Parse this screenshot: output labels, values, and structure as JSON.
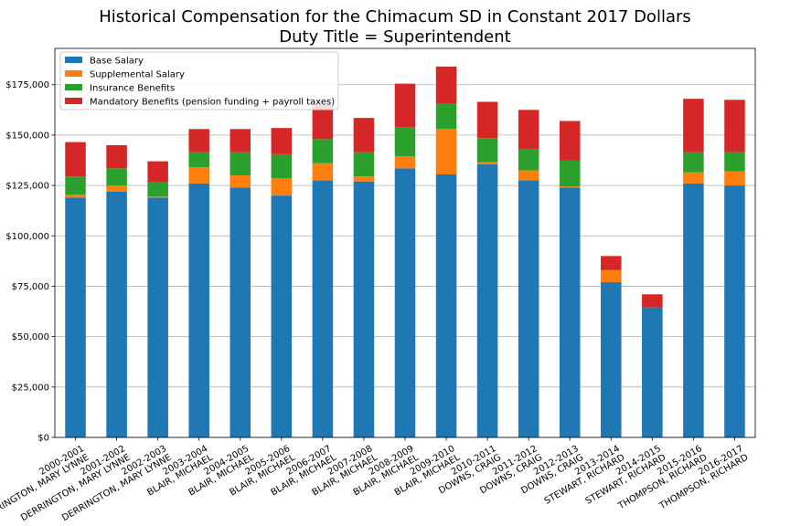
{
  "chart_data": {
    "type": "bar",
    "stacked": true,
    "title": "Historical Compensation for the Chimacum SD in Constant 2017 Dollars",
    "subtitle": "Duty Title = Superintendent",
    "categories": [
      [
        "2000-2001",
        "DERRINGTON, MARY LYNNE"
      ],
      [
        "2001-2002",
        "DERRINGTON, MARY LYNNE"
      ],
      [
        "2002-2003",
        "DERRINGTON, MARY LYNNE"
      ],
      [
        "2003-2004",
        "BLAIR, MICHAEL"
      ],
      [
        "2004-2005",
        "BLAIR, MICHAEL"
      ],
      [
        "2005-2006",
        "BLAIR, MICHAEL"
      ],
      [
        "2006-2007",
        "BLAIR, MICHAEL"
      ],
      [
        "2007-2008",
        "BLAIR, MICHAEL"
      ],
      [
        "2008-2009",
        "BLAIR, MICHAEL"
      ],
      [
        "2009-2010",
        "BLAIR, MICHAEL"
      ],
      [
        "2010-2011",
        "DOWNS, CRAIG"
      ],
      [
        "2011-2012",
        "DOWNS, CRAIG"
      ],
      [
        "2012-2013",
        "DOWNS, CRAIG"
      ],
      [
        "2013-2014",
        "STEWART, RICHARD"
      ],
      [
        "2014-2015",
        "STEWART, RICHARD"
      ],
      [
        "2015-2016",
        "THOMPSON, RICHARD"
      ],
      [
        "2016-2017",
        "THOMPSON, RICHARD"
      ]
    ],
    "series": [
      {
        "name": "Base Salary",
        "color": "#1f77b4",
        "values": [
          119000,
          122000,
          119000,
          126000,
          124000,
          120000,
          127500,
          127000,
          133500,
          130500,
          135500,
          127500,
          124000,
          77000,
          64500,
          126000,
          125000
        ]
      },
      {
        "name": "Supplemental Salary",
        "color": "#ff7f0e",
        "values": [
          1500,
          3000,
          500,
          8000,
          6000,
          8500,
          8500,
          2500,
          6000,
          22500,
          1000,
          5000,
          500,
          6000,
          0,
          5500,
          7000
        ]
      },
      {
        "name": "Insurance Benefits",
        "color": "#2ca02c",
        "values": [
          9000,
          8500,
          7000,
          7500,
          11500,
          12000,
          12000,
          12000,
          14500,
          12500,
          12000,
          10500,
          13000,
          0,
          0,
          10000,
          9500
        ]
      },
      {
        "name": "Mandatory Benefits (pension funding + payroll taxes)",
        "color": "#d62728",
        "values": [
          17000,
          11500,
          10500,
          11500,
          11500,
          13000,
          17000,
          17000,
          21500,
          18500,
          18000,
          19500,
          19500,
          7000,
          6500,
          26500,
          26000
        ]
      }
    ],
    "ylim": [
      0,
      193000
    ],
    "yticks": [
      0,
      25000,
      50000,
      75000,
      100000,
      125000,
      150000,
      175000
    ],
    "ytick_labels": [
      "$0",
      "$25,000",
      "$50,000",
      "$75,000",
      "$100,000",
      "$125,000",
      "$150,000",
      "$175,000"
    ],
    "grid": "horizontal",
    "legend_position": "top-left",
    "xlabel": "",
    "ylabel": ""
  }
}
